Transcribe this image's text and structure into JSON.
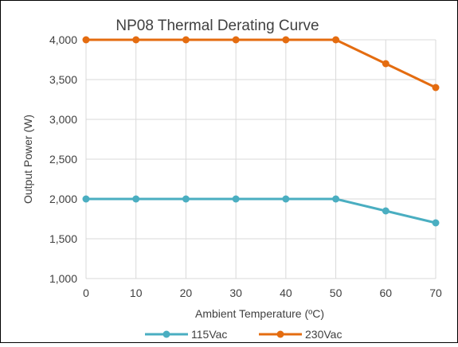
{
  "chart_data": {
    "type": "line",
    "title": "NP08 Thermal Derating Curve",
    "xlabel": "Ambient Temperature (ºC)",
    "ylabel": "Output Power (W)",
    "x": [
      0,
      10,
      20,
      30,
      40,
      50,
      60,
      70
    ],
    "x_tick_labels": [
      "0",
      "10",
      "20",
      "30",
      "40",
      "50",
      "60",
      "70"
    ],
    "y_tick_labels": [
      "1,000",
      "1,500",
      "2,000",
      "2,500",
      "3,000",
      "3,500",
      "4,000"
    ],
    "y_ticks": [
      1000,
      1500,
      2000,
      2500,
      3000,
      3500,
      4000
    ],
    "xlim": [
      0,
      70
    ],
    "ylim": [
      1000,
      4000
    ],
    "grid": "vertical and horizontal",
    "legend_position": "bottom",
    "series": [
      {
        "name": "115Vac",
        "values": [
          2000,
          2000,
          2000,
          2000,
          2000,
          2000,
          1850,
          1700
        ],
        "color": "#4aaec1"
      },
      {
        "name": "230Vac",
        "values": [
          4000,
          4000,
          4000,
          4000,
          4000,
          4000,
          3700,
          3400
        ],
        "color": "#e46c10"
      }
    ],
    "colors": {
      "grid": "#d9d9d9",
      "frame": "#000000",
      "text": "#404040",
      "title": "#404040"
    }
  }
}
